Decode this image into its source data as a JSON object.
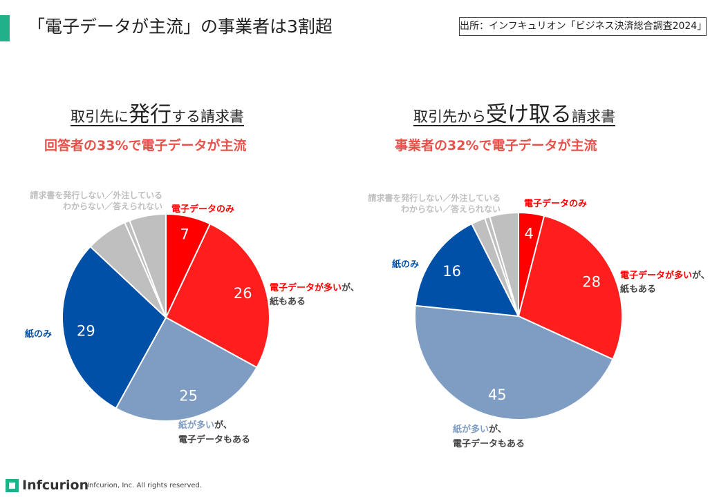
{
  "slide": {
    "title": "「電子データが主流」の事業者は3割超",
    "source": "出所：インフキュリオン「ビジネス決済総合調査2024」"
  },
  "left": {
    "title_pre": "取引先に",
    "title_big": "発行",
    "title_post": "する請求書",
    "subtitle": "回答者の33%で電子データが主流"
  },
  "right": {
    "title_pre": "取引先から",
    "title_big": "受け取る",
    "title_post": "請求書",
    "subtitle": "事業者の32%で電子データが主流"
  },
  "footer": {
    "logo": "Infcurion",
    "copyright": "Infcurion, Inc.  All rights reserved."
  },
  "colors": {
    "electronic_only": "#ff0000",
    "mostly_electronic": "#ff1e1e",
    "mostly_paper": "#7f9dc2",
    "paper_only": "#0050a8",
    "other": "#bfbfbf",
    "accent": "#20b08a"
  },
  "chart_data": [
    {
      "type": "pie",
      "title": "取引先に発行する請求書",
      "slices": [
        {
          "key": "e_only",
          "label": "電子データのみ",
          "value": 7,
          "color": "#ff0000",
          "show_value": true
        },
        {
          "key": "e_mostly",
          "label": "電子データが多いが、紙もある",
          "value": 26,
          "color": "#ff1e1e",
          "show_value": true
        },
        {
          "key": "p_mostly",
          "label": "紙が多いが、電子データもある",
          "value": 25,
          "color": "#7f9dc2",
          "show_value": true
        },
        {
          "key": "p_only",
          "label": "紙のみ",
          "value": 29,
          "color": "#0050a8",
          "show_value": true
        },
        {
          "key": "not_issued",
          "label": "請求書を発行しない／外注している",
          "value": 6.5,
          "color": "#bfbfbf",
          "show_value": false
        },
        {
          "key": "thin",
          "label": "",
          "value": 0.8,
          "color": "#bfbfbf",
          "show_value": false
        },
        {
          "key": "unknown",
          "label": "わからない／答えられない",
          "value": 5.7,
          "color": "#bfbfbf",
          "show_value": false
        }
      ]
    },
    {
      "type": "pie",
      "title": "取引先から受け取る請求書",
      "slices": [
        {
          "key": "e_only",
          "label": "電子データのみ",
          "value": 4,
          "color": "#ff0000",
          "show_value": true
        },
        {
          "key": "e_mostly",
          "label": "電子データが多いが、紙もある",
          "value": 28,
          "color": "#ff1e1e",
          "show_value": true
        },
        {
          "key": "p_mostly",
          "label": "紙が多いが、電子データもある",
          "value": 45,
          "color": "#7f9dc2",
          "show_value": true
        },
        {
          "key": "p_only",
          "label": "紙のみ",
          "value": 16,
          "color": "#0050a8",
          "show_value": true
        },
        {
          "key": "not_issued",
          "label": "請求書を発行しない／外注している",
          "value": 2.2,
          "color": "#bfbfbf",
          "show_value": false
        },
        {
          "key": "thin",
          "label": "",
          "value": 0.8,
          "color": "#bfbfbf",
          "show_value": false
        },
        {
          "key": "unknown",
          "label": "わからない／答えられない",
          "value": 4.5,
          "color": "#bfbfbf",
          "show_value": false
        }
      ]
    }
  ],
  "callouts": {
    "e_only": "電子データのみ",
    "e_mostly_red": "電子データが多い",
    "e_mostly_rest": "が、",
    "e_mostly_line2": "紙もある",
    "p_mostly_blue": "紙が多い",
    "p_mostly_rest": "が、",
    "p_mostly_line2": "電子データもある",
    "p_only": "紙のみ",
    "other_line1": "請求書を発行しない／外注している",
    "other_line2": "わからない／答えられない"
  }
}
